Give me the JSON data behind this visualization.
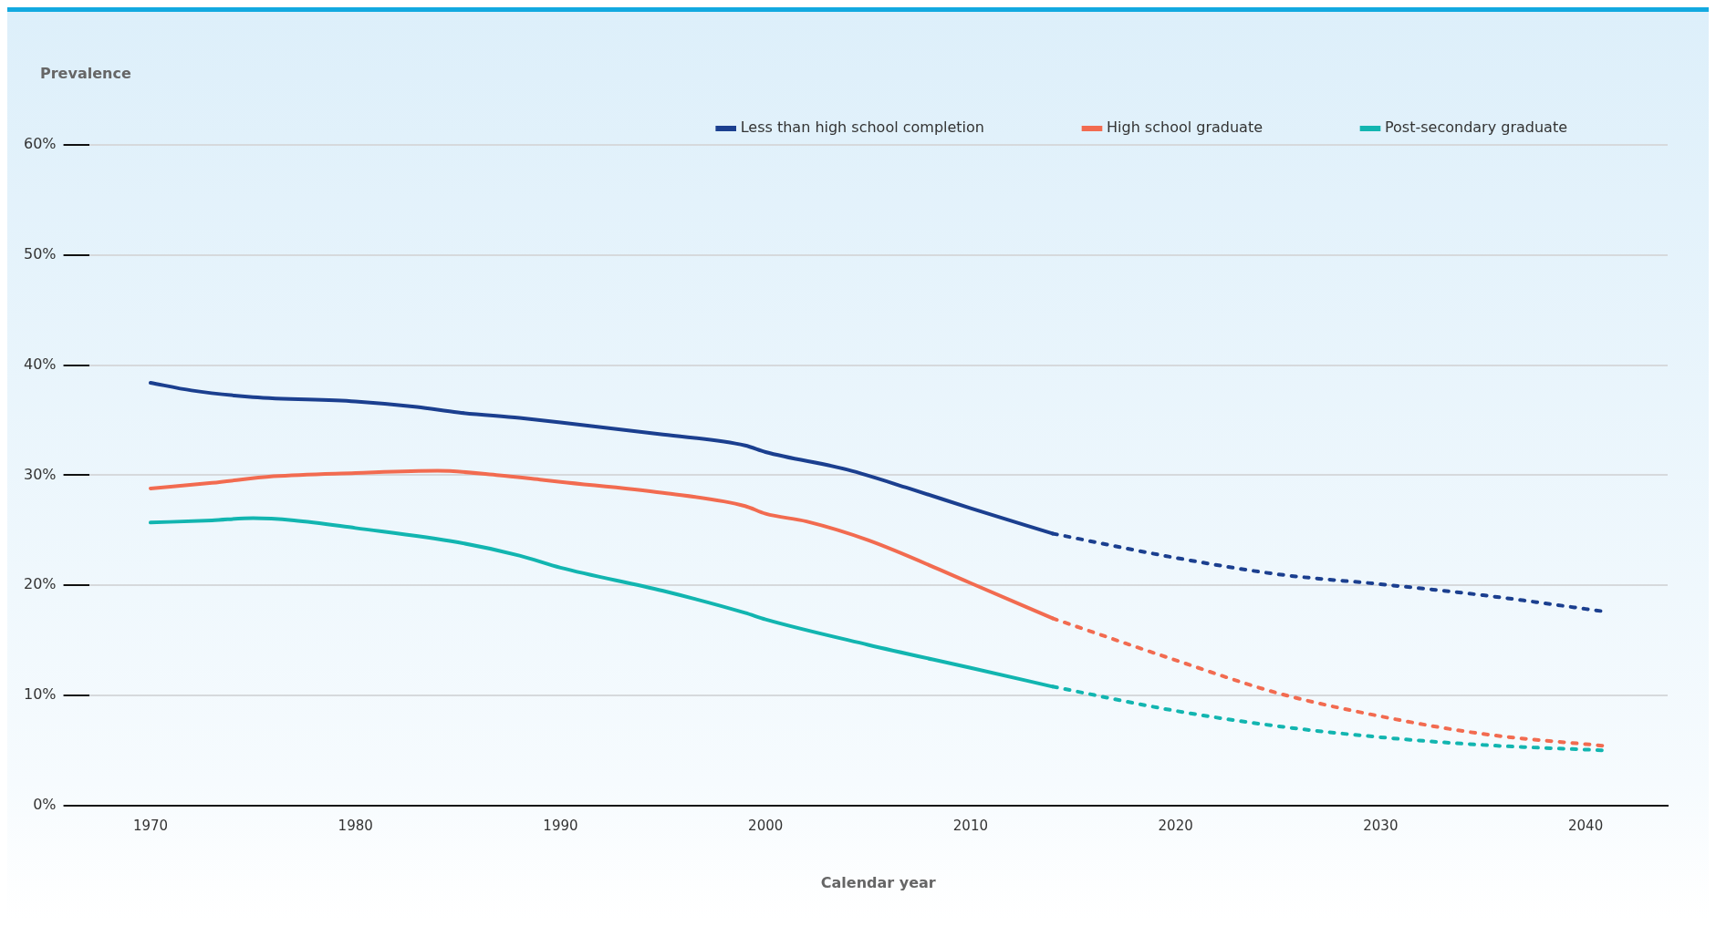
{
  "chart_data": {
    "type": "line",
    "ylabel": "Prevalence",
    "xlabel": "Calendar year",
    "xlim": [
      1967,
      2044
    ],
    "xticks": [
      1970,
      1980,
      1990,
      2000,
      2010,
      2020,
      2030,
      2040
    ],
    "ylim": [
      0,
      60
    ],
    "yticks": [
      {
        "value": 0,
        "label": "0%"
      },
      {
        "value": 10,
        "label": "10%"
      },
      {
        "value": 20,
        "label": "20%"
      },
      {
        "value": 30,
        "label": "30%"
      },
      {
        "value": 40,
        "label": "40%"
      },
      {
        "value": 50,
        "label": "50%"
      },
      {
        "value": 60,
        "label": "60%"
      }
    ],
    "grid": "y",
    "legend": "top right",
    "marker": "none",
    "series": [
      {
        "name": "Less than high school completion",
        "color": "#1b3f8f",
        "line_style": "solid",
        "x": [
          1970,
          1972,
          1975,
          1980,
          1983,
          1985,
          1988,
          1990,
          1995,
          1999,
          2000,
          2004,
          2007,
          2010,
          2014
        ],
        "values": [
          38.4,
          37.7,
          37.1,
          36.7,
          36.2,
          35.7,
          35.2,
          34.8,
          33.7,
          32.7,
          32.1,
          30.5,
          28.8,
          27.0,
          24.7
        ]
      },
      {
        "name": "High school graduate",
        "color": "#f26b50",
        "line_style": "solid",
        "x": [
          1970,
          1973,
          1976,
          1980,
          1984,
          1987,
          1989,
          1990,
          1995,
          1999,
          2000,
          2002,
          2005,
          2010,
          2014
        ],
        "values": [
          28.8,
          29.3,
          29.9,
          30.2,
          30.4,
          30.0,
          29.6,
          29.4,
          28.4,
          27.2,
          26.5,
          25.8,
          24.1,
          20.2,
          17.0
        ]
      },
      {
        "name": "Post-secondary graduate",
        "color": "#12b5b0",
        "line_style": "solid",
        "x": [
          1970,
          1973,
          1975,
          1977,
          1980,
          1985,
          1988,
          1990,
          1995,
          1999,
          2000,
          2005,
          2010,
          2014
        ],
        "values": [
          25.7,
          25.9,
          26.1,
          25.9,
          25.2,
          23.9,
          22.7,
          21.6,
          19.5,
          17.5,
          16.9,
          14.6,
          12.5,
          10.8
        ]
      },
      {
        "color": "#1b3f8f",
        "line_style": "dotted",
        "x": [
          2014,
          2020,
          2025,
          2030,
          2035,
          2041
        ],
        "values": [
          24.7,
          22.5,
          21.0,
          20.1,
          19.1,
          17.6
        ]
      },
      {
        "color": "#f26b50",
        "line_style": "dotted",
        "x": [
          2014,
          2020,
          2025,
          2030,
          2035,
          2041
        ],
        "values": [
          17.0,
          13.2,
          10.2,
          8.1,
          6.5,
          5.4
        ]
      },
      {
        "color": "#12b5b0",
        "line_style": "dotted",
        "x": [
          2014,
          2020,
          2025,
          2030,
          2035,
          2041
        ],
        "values": [
          10.8,
          8.6,
          7.2,
          6.2,
          5.5,
          5.0
        ]
      }
    ]
  }
}
